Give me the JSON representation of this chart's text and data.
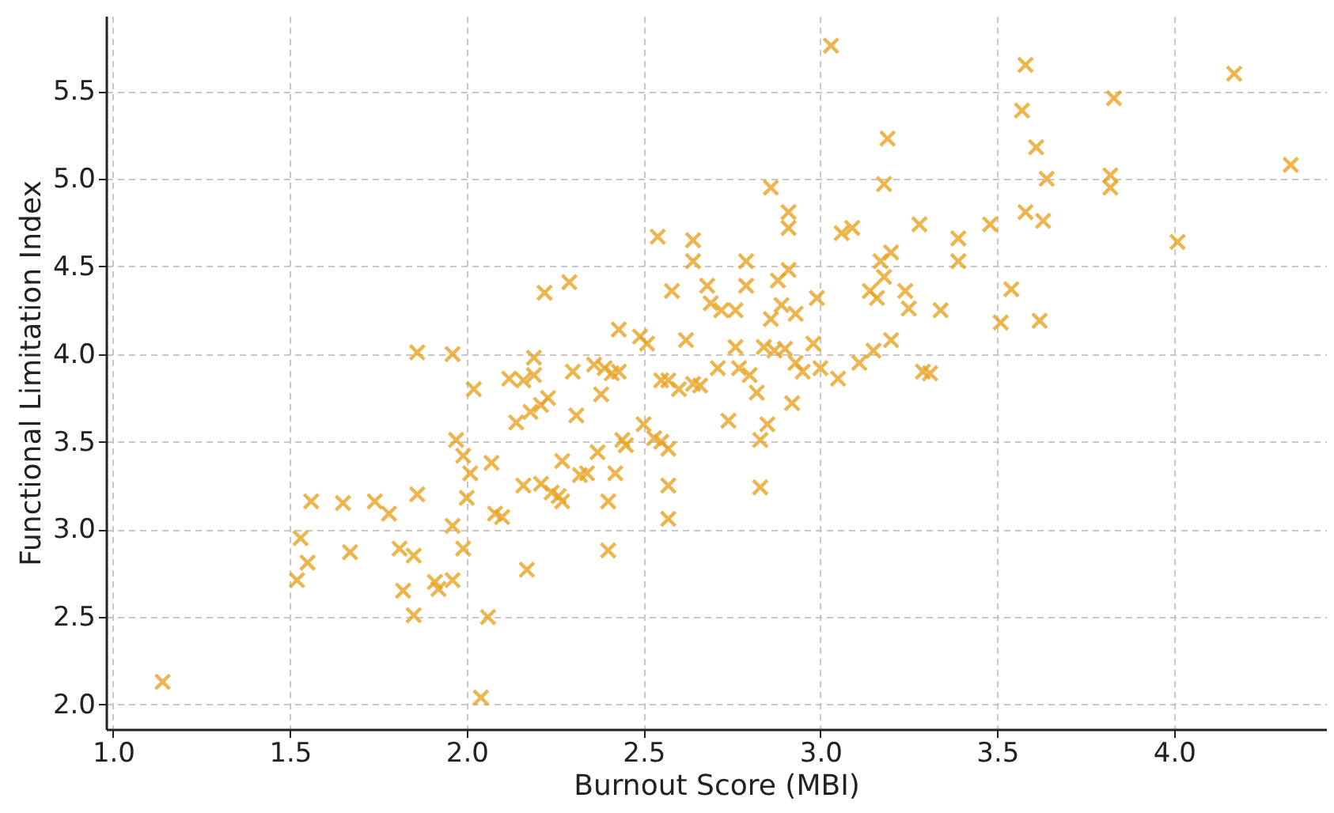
{
  "chart_data": {
    "type": "scatter",
    "xlabel": "Burnout Score (MBI)",
    "ylabel": "Functional Limitation Index",
    "xlim": [
      0.98,
      4.43
    ],
    "ylim": [
      1.86,
      5.93
    ],
    "xticks": [
      {
        "value": 1.0,
        "label": "1.0"
      },
      {
        "value": 1.5,
        "label": "1.5"
      },
      {
        "value": 2.0,
        "label": "2.0"
      },
      {
        "value": 2.5,
        "label": "2.5"
      },
      {
        "value": 3.0,
        "label": "3.0"
      },
      {
        "value": 3.5,
        "label": "3.5"
      },
      {
        "value": 4.0,
        "label": "4.0"
      }
    ],
    "yticks": [
      {
        "value": 2.0,
        "label": "2.0"
      },
      {
        "value": 2.5,
        "label": "2.5"
      },
      {
        "value": 3.0,
        "label": "3.0"
      },
      {
        "value": 3.5,
        "label": "3.5"
      },
      {
        "value": 4.0,
        "label": "4.0"
      },
      {
        "value": 4.5,
        "label": "4.5"
      },
      {
        "value": 5.0,
        "label": "5.0"
      },
      {
        "value": 5.5,
        "label": "5.5"
      }
    ],
    "grid": true,
    "marker": "cross",
    "series": [
      {
        "color": "#e8a323",
        "x": [
          1.14,
          1.52,
          1.53,
          1.55,
          1.56,
          1.65,
          1.67,
          1.74,
          1.78,
          1.81,
          1.82,
          1.85,
          1.85,
          1.86,
          1.86,
          1.91,
          1.92,
          1.96,
          1.96,
          1.96,
          1.97,
          1.99,
          1.99,
          2.0,
          2.01,
          2.02,
          2.04,
          2.06,
          2.07,
          2.08,
          2.1,
          2.12,
          2.14,
          2.16,
          2.16,
          2.17,
          2.18,
          2.19,
          2.19,
          2.21,
          2.21,
          2.22,
          2.23,
          2.24,
          2.26,
          2.27,
          2.27,
          2.29,
          2.3,
          2.31,
          2.32,
          2.34,
          2.36,
          2.37,
          2.38,
          2.39,
          2.4,
          2.4,
          2.41,
          2.42,
          2.43,
          2.43,
          2.44,
          2.45,
          2.49,
          2.5,
          2.51,
          2.53,
          2.54,
          2.55,
          2.55,
          2.57,
          2.57,
          2.57,
          2.57,
          2.58,
          2.6,
          2.62,
          2.64,
          2.64,
          2.64,
          2.66,
          2.68,
          2.69,
          2.71,
          2.72,
          2.74,
          2.76,
          2.76,
          2.77,
          2.79,
          2.79,
          2.8,
          2.82,
          2.83,
          2.83,
          2.84,
          2.85,
          2.86,
          2.86,
          2.87,
          2.88,
          2.89,
          2.9,
          2.91,
          2.91,
          2.91,
          2.92,
          2.93,
          2.93,
          2.95,
          2.98,
          2.99,
          3.0,
          3.03,
          3.05,
          3.06,
          3.09,
          3.11,
          3.14,
          3.15,
          3.16,
          3.17,
          3.18,
          3.18,
          3.2,
          3.2,
          3.19,
          3.24,
          3.25,
          3.28,
          3.29,
          3.31,
          3.34,
          3.39,
          3.39,
          3.48,
          3.51,
          3.54,
          3.57,
          3.58,
          3.58,
          3.61,
          3.62,
          3.63,
          3.64,
          3.82,
          3.82,
          3.83,
          4.01,
          4.17,
          4.33
        ],
        "values": [
          2.13,
          2.71,
          2.95,
          2.81,
          3.16,
          3.15,
          2.87,
          3.16,
          3.09,
          2.89,
          2.65,
          2.85,
          2.51,
          3.2,
          4.01,
          2.7,
          2.66,
          3.02,
          2.71,
          4.0,
          3.51,
          3.42,
          2.89,
          3.18,
          3.32,
          3.8,
          2.04,
          2.5,
          3.38,
          3.09,
          3.07,
          3.86,
          3.61,
          3.85,
          3.25,
          2.77,
          3.67,
          3.88,
          3.98,
          3.26,
          3.71,
          4.35,
          3.75,
          3.21,
          3.19,
          3.39,
          3.16,
          4.41,
          3.9,
          3.65,
          3.31,
          3.32,
          3.94,
          3.44,
          3.77,
          3.92,
          3.16,
          2.88,
          3.89,
          3.32,
          4.14,
          3.9,
          3.51,
          3.48,
          4.1,
          3.6,
          4.06,
          3.52,
          4.67,
          3.5,
          3.85,
          3.46,
          3.25,
          3.06,
          3.85,
          4.36,
          3.8,
          4.08,
          3.83,
          4.53,
          4.65,
          3.82,
          4.39,
          4.29,
          3.92,
          4.25,
          3.62,
          4.25,
          4.04,
          3.92,
          4.39,
          4.53,
          3.88,
          3.78,
          3.24,
          3.51,
          4.04,
          3.6,
          4.2,
          4.95,
          4.02,
          4.42,
          4.28,
          4.03,
          4.48,
          4.81,
          4.72,
          3.72,
          3.95,
          4.23,
          3.9,
          4.06,
          4.32,
          3.92,
          5.76,
          3.86,
          4.69,
          4.72,
          3.95,
          4.36,
          4.02,
          4.32,
          4.53,
          4.97,
          4.44,
          4.58,
          4.08,
          5.23,
          4.36,
          4.26,
          4.74,
          3.9,
          3.89,
          4.25,
          4.53,
          4.66,
          4.74,
          4.18,
          4.37,
          5.39,
          5.65,
          4.81,
          5.18,
          4.19,
          4.76,
          5.0,
          5.02,
          4.95,
          5.46,
          4.64,
          5.6,
          5.08
        ]
      }
    ]
  }
}
